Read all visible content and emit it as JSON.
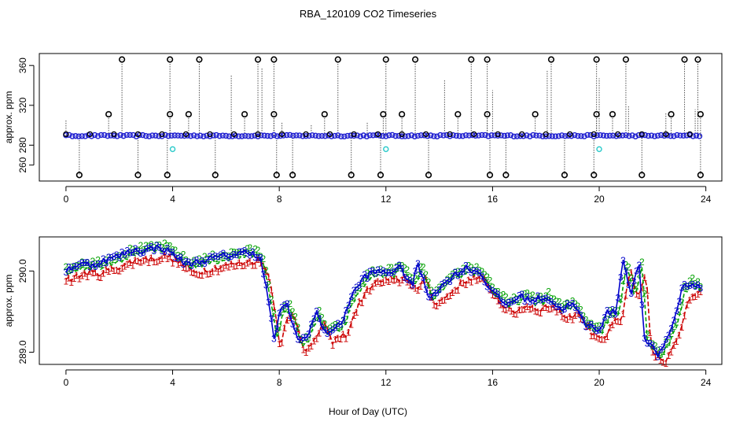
{
  "title": "RBA_120109  CO2 Timeseries",
  "xlabel": "Hour of Day (UTC)",
  "colors": {
    "black": "#000000",
    "blue": "#1f1fd0",
    "cyan": "#33cccc",
    "red": "#cc0000",
    "green": "#00a000",
    "blue_dark": "#0000cc"
  },
  "chart_data": [
    {
      "type": "scatter",
      "name": "top-panel",
      "ylabel": "approx. ppm",
      "xlim": [
        -1,
        24.6
      ],
      "ylim": [
        244,
        372
      ],
      "xticks": [
        0,
        4,
        8,
        12,
        16,
        20,
        24
      ],
      "yticks": [
        260,
        280,
        320,
        360
      ],
      "ytick_labels": [
        "260",
        "280",
        "320",
        "360"
      ],
      "baseline": 289.5,
      "spikes_high": [
        2.1,
        3.9,
        5.0,
        7.2,
        7.8,
        10.2,
        12.0,
        13.1,
        15.2,
        15.8,
        18.2,
        19.9,
        21.0,
        23.2,
        23.7
      ],
      "spikes_high_value": 366,
      "spikes_mid": [
        1.6,
        3.9,
        4.6,
        6.7,
        7.8,
        9.7,
        11.9,
        12.6,
        14.7,
        15.8,
        17.6,
        19.9,
        20.5,
        22.7,
        23.8
      ],
      "spikes_mid_value": 311,
      "spikes_low": [
        0.5,
        2.7,
        3.8,
        5.6,
        7.9,
        8.5,
        10.7,
        11.8,
        13.6,
        15.9,
        16.5,
        18.7,
        19.8,
        21.6,
        23.8
      ],
      "spikes_low_value": 250,
      "cyan_points": [
        {
          "x": 4.0,
          "y": 276
        },
        {
          "x": 12.0,
          "y": 276
        },
        {
          "x": 20.0,
          "y": 276
        }
      ]
    },
    {
      "type": "line",
      "name": "bottom-panel",
      "ylabel": "approx. ppm",
      "xlim": [
        -1,
        24.6
      ],
      "ylim": [
        288.85,
        290.42
      ],
      "xticks": [
        0,
        4,
        8,
        12,
        16,
        20,
        24
      ],
      "yticks": [
        289.0,
        290.0
      ],
      "ytick_labels": [
        "289.0",
        "290.0"
      ],
      "series_labels": [
        "1",
        "2",
        "3"
      ],
      "control_points": [
        [
          0.0,
          289.98
        ],
        [
          0.5,
          290.05
        ],
        [
          1.0,
          290.04
        ],
        [
          1.5,
          290.1
        ],
        [
          2.0,
          290.15
        ],
        [
          2.5,
          290.22
        ],
        [
          3.0,
          290.22
        ],
        [
          3.5,
          290.26
        ],
        [
          4.0,
          290.18
        ],
        [
          4.5,
          290.05
        ],
        [
          5.0,
          290.08
        ],
        [
          5.5,
          290.12
        ],
        [
          6.0,
          290.15
        ],
        [
          6.5,
          290.18
        ],
        [
          7.0,
          290.2
        ],
        [
          7.3,
          290.1
        ],
        [
          7.6,
          289.6
        ],
        [
          7.8,
          289.1
        ],
        [
          8.0,
          289.45
        ],
        [
          8.3,
          289.55
        ],
        [
          8.7,
          289.1
        ],
        [
          9.0,
          289.15
        ],
        [
          9.4,
          289.45
        ],
        [
          9.7,
          289.2
        ],
        [
          10.0,
          289.25
        ],
        [
          10.3,
          289.3
        ],
        [
          10.7,
          289.65
        ],
        [
          11.2,
          289.9
        ],
        [
          11.6,
          289.95
        ],
        [
          12.1,
          289.95
        ],
        [
          12.5,
          290.0
        ],
        [
          13.0,
          289.8
        ],
        [
          13.2,
          290.05
        ],
        [
          13.6,
          289.65
        ],
        [
          14.0,
          289.75
        ],
        [
          14.5,
          289.9
        ],
        [
          15.0,
          290.0
        ],
        [
          15.5,
          289.95
        ],
        [
          16.0,
          289.7
        ],
        [
          16.5,
          289.55
        ],
        [
          17.0,
          289.65
        ],
        [
          17.5,
          289.6
        ],
        [
          18.0,
          289.65
        ],
        [
          18.5,
          289.5
        ],
        [
          19.0,
          289.55
        ],
        [
          19.5,
          289.3
        ],
        [
          20.0,
          289.25
        ],
        [
          20.3,
          289.45
        ],
        [
          20.6,
          289.45
        ],
        [
          20.9,
          290.1
        ],
        [
          21.2,
          289.7
        ],
        [
          21.5,
          290.05
        ],
        [
          21.7,
          289.1
        ],
        [
          21.9,
          289.05
        ],
        [
          22.2,
          288.93
        ],
        [
          22.5,
          289.1
        ],
        [
          22.8,
          289.35
        ],
        [
          23.1,
          289.75
        ],
        [
          23.4,
          289.82
        ],
        [
          23.8,
          289.75
        ]
      ]
    }
  ]
}
